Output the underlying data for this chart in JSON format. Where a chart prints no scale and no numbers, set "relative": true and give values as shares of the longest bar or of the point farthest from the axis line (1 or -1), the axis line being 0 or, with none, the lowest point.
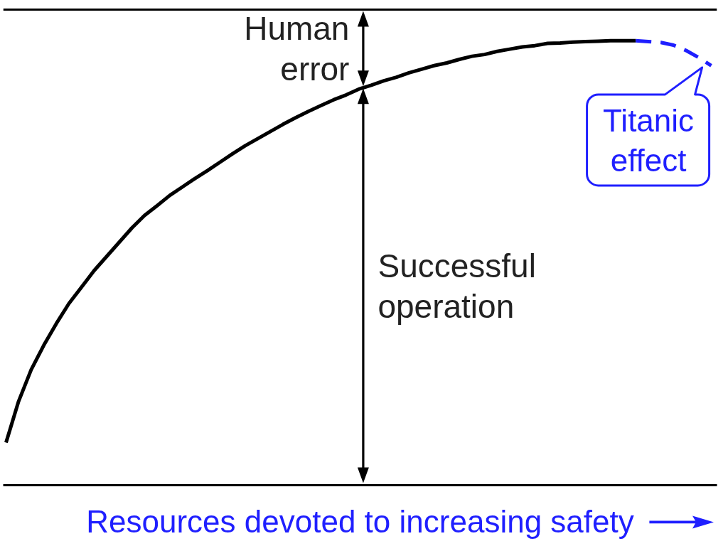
{
  "chart_data": {
    "type": "line",
    "relative": true,
    "xlabel": "Resources devoted to increasing safety",
    "categories": [
      null,
      null,
      null,
      null,
      null,
      null,
      null,
      null,
      null,
      null,
      null,
      null,
      null,
      null,
      null,
      null,
      null,
      null,
      null,
      null,
      null,
      null,
      null,
      null,
      null,
      null,
      null,
      null,
      null,
      null,
      null,
      null,
      null,
      null,
      null,
      null,
      null,
      null,
      null,
      null,
      null,
      null,
      null,
      null,
      null,
      null,
      null,
      null,
      null,
      null,
      null,
      null,
      null,
      null,
      null,
      null,
      null
    ],
    "series": [
      {
        "color": "#000000",
        "values": [
          0.096,
          0.189,
          0.26,
          0.315,
          0.364,
          0.409,
          0.446,
          0.483,
          0.515,
          0.547,
          0.579,
          0.607,
          0.629,
          0.652,
          0.671,
          0.69,
          0.708,
          0.727,
          0.746,
          0.764,
          0.78,
          0.796,
          0.812,
          0.827,
          0.841,
          0.854,
          0.867,
          0.878,
          0.891,
          0.9,
          0.91,
          0.918,
          0.928,
          0.936,
          0.944,
          0.95,
          0.958,
          0.965,
          0.969,
          0.976,
          0.981,
          0.986,
          0.989,
          0.994,
          0.995,
          0.997,
          0.998,
          0.999,
          1.0,
          1.0,
          1.0,
          null,
          null,
          null,
          null,
          null,
          null
        ]
      },
      {
        "name": "Titanic effect",
        "color": "#1f1fff",
        "line_style": "dashed",
        "values": [
          null,
          null,
          null,
          null,
          null,
          null,
          null,
          null,
          null,
          null,
          null,
          null,
          null,
          null,
          null,
          null,
          null,
          null,
          null,
          null,
          null,
          null,
          null,
          null,
          null,
          null,
          null,
          null,
          null,
          null,
          null,
          null,
          null,
          null,
          null,
          null,
          null,
          null,
          null,
          null,
          null,
          null,
          null,
          null,
          null,
          null,
          null,
          null,
          null,
          null,
          1.0,
          0.998,
          0.996,
          0.99,
          0.978,
          0.962,
          0.944
        ]
      }
    ],
    "ref_lines": [
      {
        "axis": "y",
        "value": 1.07,
        "color": "#000000"
      }
    ],
    "annotations": [
      "Human error",
      "Successful operation"
    ]
  }
}
